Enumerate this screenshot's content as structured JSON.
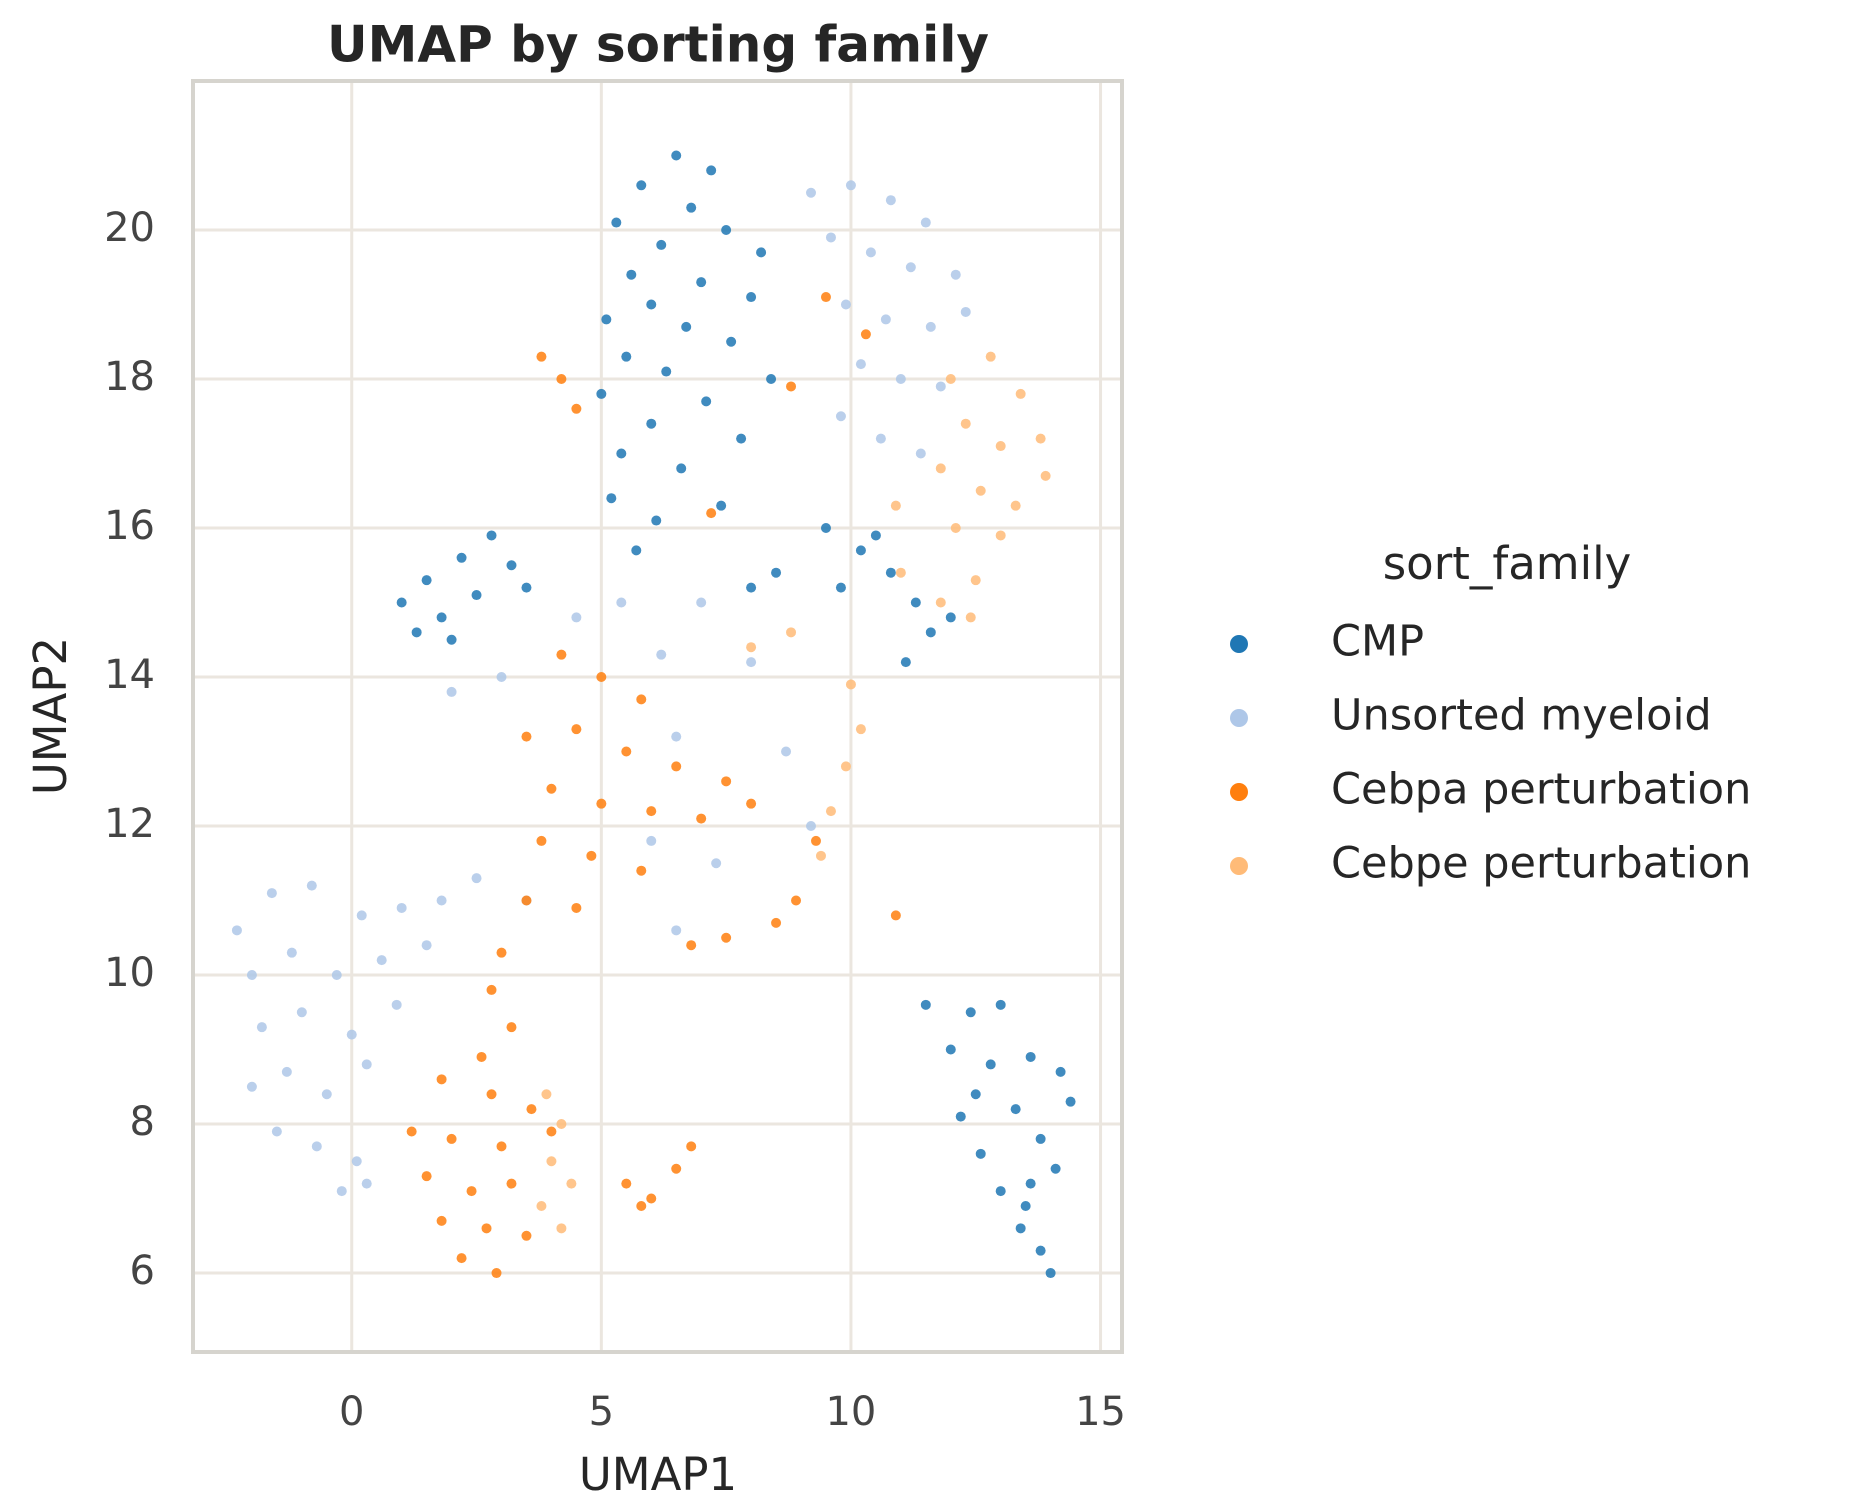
{
  "chart_data": {
    "type": "scatter",
    "title": "UMAP by sorting family",
    "xlabel": "UMAP1",
    "ylabel": "UMAP2",
    "legend_title": "sort_family",
    "legend": "right",
    "grid": true,
    "xlim": [
      -3.18,
      15.43
    ],
    "ylim": [
      4.94,
      22.0
    ],
    "xticks": [
      0,
      5,
      10,
      15
    ],
    "yticks": [
      6,
      8,
      10,
      12,
      14,
      16,
      18,
      20
    ],
    "series": [
      {
        "name": "CMP",
        "color": "#1f77b4",
        "x": [
          6.5,
          7.2,
          5.8,
          6.8,
          5.3,
          7.5,
          6.2,
          8.2,
          5.6,
          7.0,
          6.0,
          8.0,
          5.1,
          6.7,
          7.6,
          5.5,
          6.3,
          8.4,
          5.0,
          7.1,
          6.0,
          5.4,
          7.8,
          6.6,
          5.2,
          6.1,
          5.7,
          7.4,
          8.5,
          8.0,
          1.0,
          1.5,
          2.2,
          2.8,
          3.2,
          2.5,
          1.8,
          1.3,
          3.5,
          2.0,
          9.5,
          10.2,
          10.8,
          11.3,
          11.6,
          11.1,
          9.8,
          10.5,
          12.0,
          11.5,
          12.4,
          13.0,
          12.0,
          12.8,
          13.6,
          14.2,
          14.4,
          13.3,
          12.5,
          13.8,
          12.6,
          13.0,
          13.6,
          13.4,
          13.8,
          14.0,
          13.5,
          12.2,
          14.1
        ],
        "y": [
          21.0,
          20.8,
          20.6,
          20.3,
          20.1,
          20.0,
          19.8,
          19.7,
          19.4,
          19.3,
          19.0,
          19.1,
          18.8,
          18.7,
          18.5,
          18.3,
          18.1,
          18.0,
          17.8,
          17.7,
          17.4,
          17.0,
          17.2,
          16.8,
          16.4,
          16.1,
          15.7,
          16.3,
          15.4,
          15.2,
          15.0,
          15.3,
          15.6,
          15.9,
          15.5,
          15.1,
          14.8,
          14.6,
          15.2,
          14.5,
          16.0,
          15.7,
          15.4,
          15.0,
          14.6,
          14.2,
          15.2,
          15.9,
          14.8,
          9.6,
          9.5,
          9.6,
          9.0,
          8.8,
          8.9,
          8.7,
          8.3,
          8.2,
          8.4,
          7.8,
          7.6,
          7.1,
          7.2,
          6.6,
          6.3,
          6.0,
          6.9,
          8.1,
          7.4
        ]
      },
      {
        "name": "Unsorted myeloid",
        "color": "#aec7e8",
        "x": [
          -2.3,
          -1.6,
          -0.8,
          0.2,
          1.0,
          1.8,
          -2.0,
          -1.2,
          -0.3,
          0.6,
          1.5,
          -1.8,
          -1.0,
          0.0,
          0.9,
          -2.0,
          -1.3,
          -0.5,
          0.3,
          -1.5,
          -0.7,
          0.1,
          -0.2,
          0.3,
          2.5,
          3.5,
          9.2,
          10.0,
          10.8,
          11.5,
          9.6,
          10.4,
          11.2,
          12.1,
          9.9,
          10.7,
          11.6,
          12.3,
          10.2,
          11.0,
          11.8,
          9.8,
          10.6,
          11.4,
          6.2,
          7.0,
          8.0,
          6.5,
          8.7,
          6.0,
          7.3,
          9.2,
          2.0,
          3.0,
          4.5,
          5.4,
          6.5
        ],
        "y": [
          10.6,
          11.1,
          11.2,
          10.8,
          10.9,
          11.0,
          10.0,
          10.3,
          10.0,
          10.2,
          10.4,
          9.3,
          9.5,
          9.2,
          9.6,
          8.5,
          8.7,
          8.4,
          8.8,
          7.9,
          7.7,
          7.5,
          7.1,
          7.2,
          11.3,
          11.0,
          20.5,
          20.6,
          20.4,
          20.1,
          19.9,
          19.7,
          19.5,
          19.4,
          19.0,
          18.8,
          18.7,
          18.9,
          18.2,
          18.0,
          17.9,
          17.5,
          17.2,
          17.0,
          14.3,
          15.0,
          14.2,
          13.2,
          13.0,
          11.8,
          11.5,
          12.0,
          13.8,
          14.0,
          14.8,
          15.0,
          10.6
        ]
      },
      {
        "name": "Cebpa perturbation",
        "color": "#ff7f0e",
        "x": [
          4.2,
          5.0,
          5.8,
          3.5,
          4.5,
          5.5,
          6.5,
          7.5,
          4.0,
          5.0,
          6.0,
          7.0,
          8.0,
          3.8,
          4.8,
          5.8,
          3.5,
          4.5,
          3.0,
          2.8,
          3.2,
          2.6,
          1.8,
          2.8,
          3.6,
          1.2,
          2.0,
          3.0,
          4.0,
          1.5,
          2.4,
          3.2,
          1.8,
          2.7,
          3.5,
          2.2,
          2.9,
          5.5,
          6.0,
          6.5,
          6.8,
          5.8,
          8.5,
          8.9,
          7.5,
          6.8,
          9.3,
          3.8,
          4.2,
          4.5,
          9.5,
          10.3,
          8.8,
          7.2,
          10.9
        ],
        "y": [
          14.3,
          14.0,
          13.7,
          13.2,
          13.3,
          13.0,
          12.8,
          12.6,
          12.5,
          12.3,
          12.2,
          12.1,
          12.3,
          11.8,
          11.6,
          11.4,
          11.0,
          10.9,
          10.3,
          9.8,
          9.3,
          8.9,
          8.6,
          8.4,
          8.2,
          7.9,
          7.8,
          7.7,
          7.9,
          7.3,
          7.1,
          7.2,
          6.7,
          6.6,
          6.5,
          6.2,
          6.0,
          7.2,
          7.0,
          7.4,
          7.7,
          6.9,
          10.7,
          11.0,
          10.5,
          10.4,
          11.8,
          18.3,
          18.0,
          17.6,
          19.1,
          18.6,
          17.9,
          16.2,
          10.8
        ]
      },
      {
        "name": "Cebpe perturbation",
        "color": "#ffbb78",
        "x": [
          12.0,
          12.8,
          13.4,
          12.3,
          13.0,
          13.8,
          11.8,
          12.6,
          13.3,
          13.9,
          12.1,
          13.0,
          12.5,
          11.8,
          10.9,
          3.9,
          4.2,
          4.0,
          4.4,
          3.8,
          4.2,
          9.6,
          9.9,
          10.2,
          10.0,
          8.8,
          8.0,
          9.4,
          11.0,
          12.4
        ],
        "y": [
          18.0,
          18.3,
          17.8,
          17.4,
          17.1,
          17.2,
          16.8,
          16.5,
          16.3,
          16.7,
          16.0,
          15.9,
          15.3,
          15.0,
          16.3,
          8.4,
          8.0,
          7.5,
          7.2,
          6.9,
          6.6,
          12.2,
          12.8,
          13.3,
          13.9,
          14.6,
          14.4,
          11.6,
          15.4,
          14.8
        ]
      }
    ]
  }
}
